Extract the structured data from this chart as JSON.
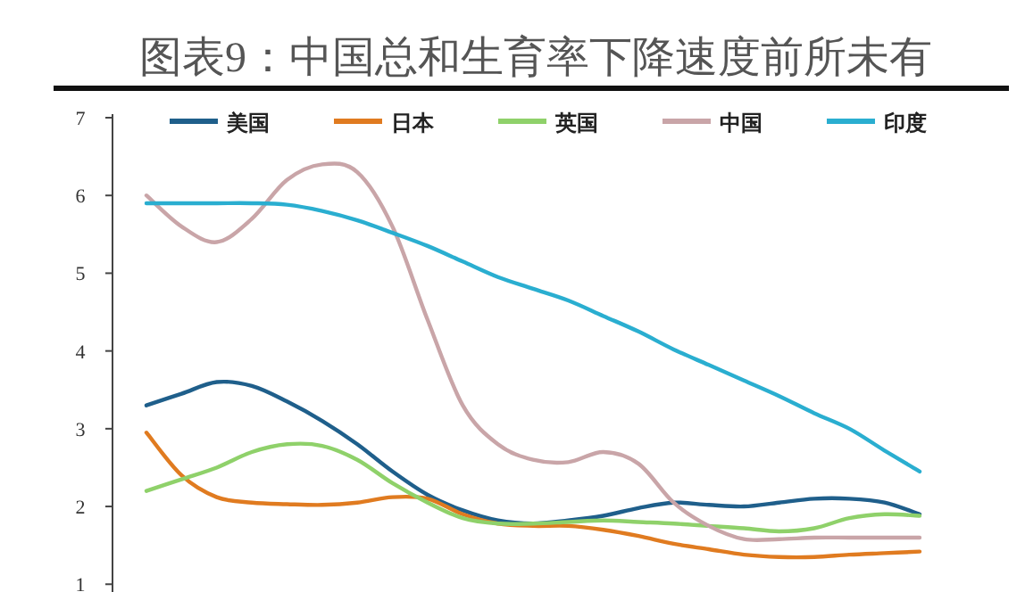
{
  "chart_data": {
    "type": "line",
    "title": "图表9：中国总和生育率下降速度前所未有",
    "categories": [
      null,
      null,
      null,
      null,
      null,
      null,
      null,
      null,
      null,
      null,
      null,
      null,
      null,
      null,
      null,
      null,
      null,
      null,
      null,
      null,
      null,
      null,
      null
    ],
    "series": [
      {
        "name": "美国",
        "color": "#1f5f8b",
        "values": [
          3.3,
          3.45,
          3.6,
          3.55,
          3.35,
          3.1,
          2.8,
          2.45,
          2.15,
          1.95,
          1.82,
          1.78,
          1.82,
          1.88,
          1.98,
          2.05,
          2.02,
          2.0,
          2.05,
          2.1,
          2.1,
          2.05,
          1.9
        ]
      },
      {
        "name": "日本",
        "color": "#e07b20",
        "values": [
          2.95,
          2.4,
          2.12,
          2.05,
          2.03,
          2.02,
          2.05,
          2.12,
          2.1,
          1.9,
          1.78,
          1.75,
          1.75,
          1.7,
          1.62,
          1.52,
          1.45,
          1.38,
          1.35,
          1.35,
          1.38,
          1.4,
          1.42
        ]
      },
      {
        "name": "英国",
        "color": "#8fd16a",
        "values": [
          2.2,
          2.35,
          2.5,
          2.7,
          2.8,
          2.78,
          2.6,
          2.3,
          2.05,
          1.85,
          1.78,
          1.78,
          1.8,
          1.82,
          1.8,
          1.78,
          1.75,
          1.72,
          1.68,
          1.72,
          1.85,
          1.9,
          1.88
        ]
      },
      {
        "name": "中国",
        "color": "#c9a5a8",
        "values": [
          6.0,
          5.6,
          5.4,
          5.7,
          6.2,
          6.4,
          6.3,
          5.6,
          4.4,
          3.3,
          2.8,
          2.6,
          2.57,
          2.7,
          2.55,
          2.05,
          1.75,
          1.58,
          1.58,
          1.6,
          1.6,
          1.6,
          1.6
        ]
      },
      {
        "name": "印度",
        "color": "#2aaed0",
        "values": [
          5.9,
          5.9,
          5.9,
          5.9,
          5.88,
          5.8,
          5.68,
          5.52,
          5.35,
          5.15,
          4.95,
          4.8,
          4.65,
          4.45,
          4.25,
          4.02,
          3.82,
          3.62,
          3.42,
          3.2,
          3.0,
          2.72,
          2.45
        ]
      }
    ],
    "ylim": [
      0.9,
      7
    ],
    "yticks": [
      1,
      2,
      3,
      4,
      5,
      6,
      7
    ],
    "tick_labels": "y",
    "legend": "top",
    "grid": false,
    "marker": "none",
    "line_style": "solid"
  }
}
